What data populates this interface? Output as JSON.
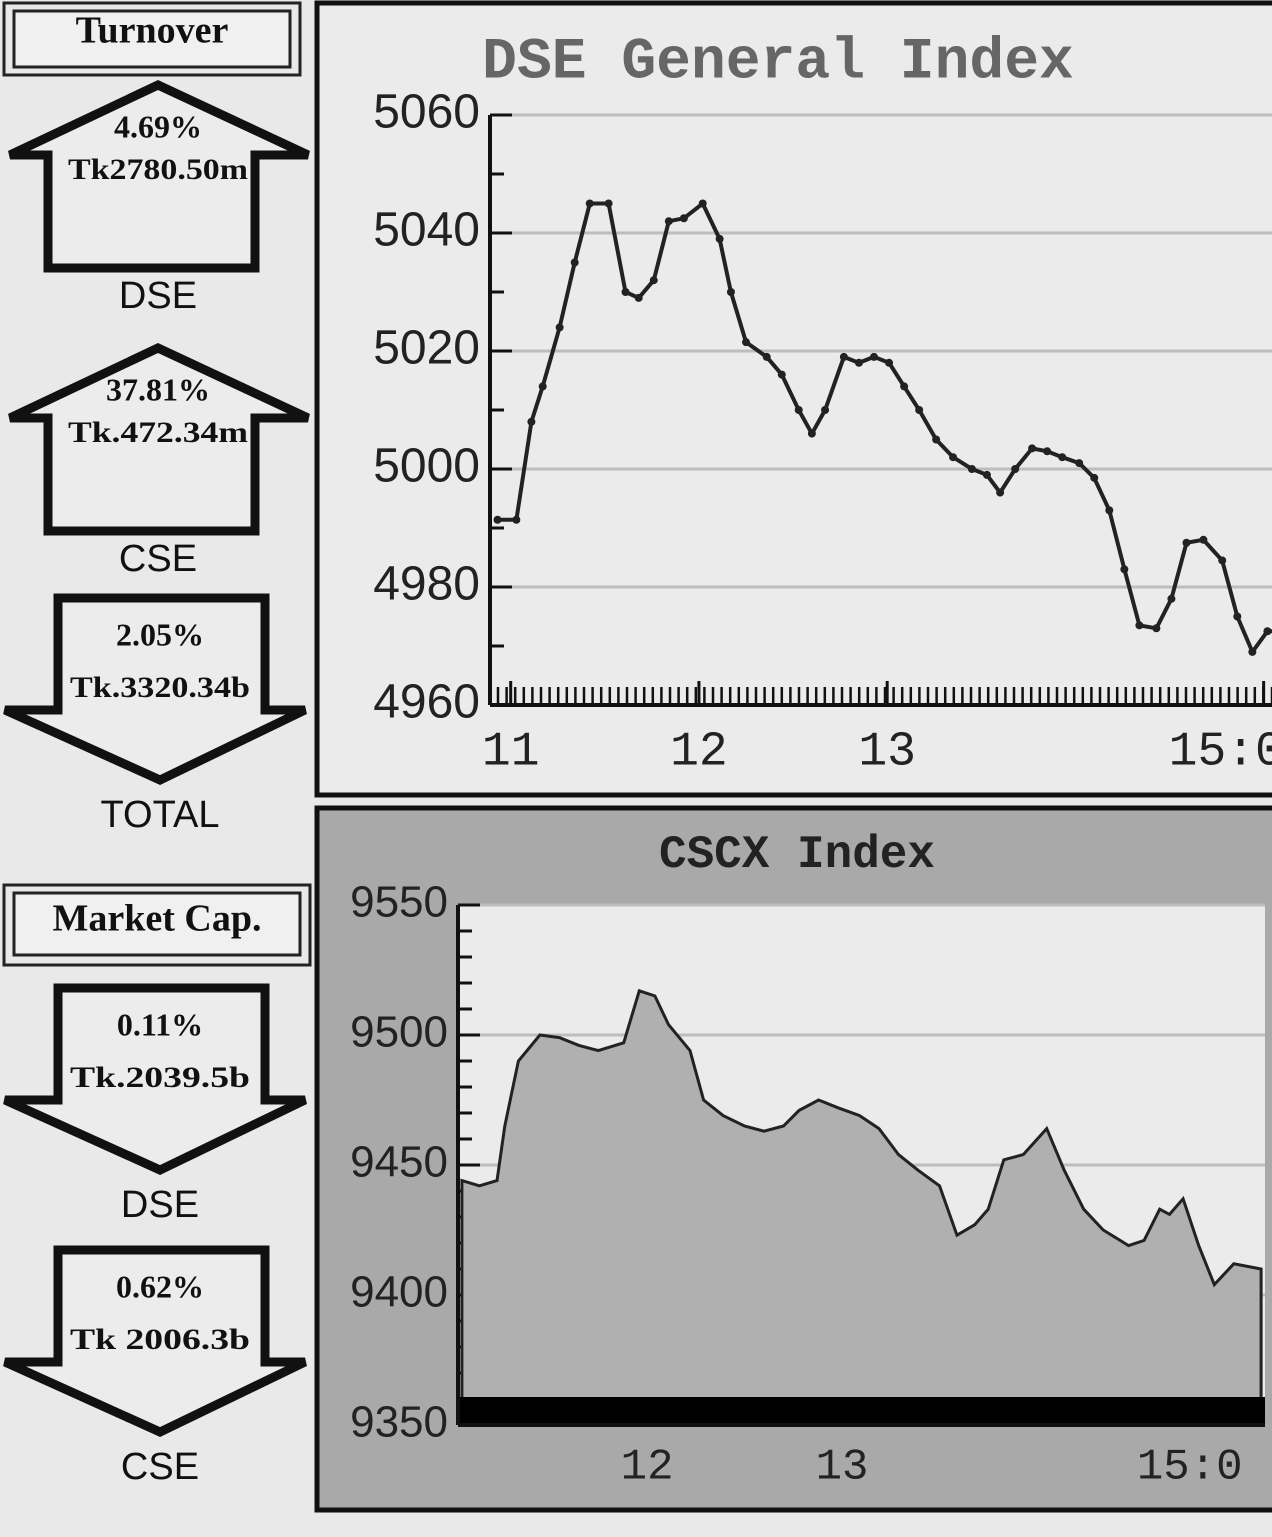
{
  "panel": {
    "turnover": {
      "title": "Turnover",
      "items": [
        {
          "pct": "4.69%",
          "amount": "Tk2780.50m",
          "label": "DSE",
          "direction": "up"
        },
        {
          "pct": "37.81%",
          "amount": "Tk.472.34m",
          "label": "CSE",
          "direction": "up"
        },
        {
          "pct": "2.05%",
          "amount": "Tk.3320.34b",
          "label": "TOTAL",
          "direction": "down"
        }
      ]
    },
    "market_cap": {
      "title": "Market Cap.",
      "items": [
        {
          "pct": "0.11%",
          "amount": "Tk.2039.5b",
          "label": "DSE",
          "direction": "down"
        },
        {
          "pct": "0.62%",
          "amount": "Tk 2006.3b",
          "label": "CSE",
          "direction": "down"
        }
      ]
    }
  },
  "chart_data": [
    {
      "type": "line",
      "title": "DSE General Index",
      "color": "#222222",
      "markers": true,
      "x": [
        10.93,
        11.03,
        11.11,
        11.17,
        11.26,
        11.34,
        11.42,
        11.52,
        11.61,
        11.68,
        11.76,
        11.84,
        11.92,
        12.02,
        12.11,
        12.17,
        12.25,
        12.36,
        12.44,
        12.53,
        12.6,
        12.67,
        12.77,
        12.85,
        12.93,
        13.01,
        13.09,
        13.17,
        13.26,
        13.35,
        13.45,
        13.53,
        13.6,
        13.68,
        13.77,
        13.85,
        13.93,
        14.02,
        14.1,
        14.18,
        14.26,
        14.34,
        14.43,
        14.51,
        14.59,
        14.68,
        14.78,
        14.86,
        14.94,
        15.02,
        15.1
      ],
      "values": [
        4991.4,
        4991.4,
        5008,
        5014,
        5024,
        5035,
        5045,
        5045,
        5030,
        5029,
        5032,
        5042,
        5042.5,
        5045,
        5039,
        5030,
        5021.5,
        5019,
        5016,
        5010,
        5006,
        5010,
        5019,
        5018,
        5019,
        5018,
        5014,
        5010,
        5005,
        5002,
        5000,
        4999,
        4996,
        5000,
        5003.5,
        5003,
        5002,
        5001,
        4998.5,
        4993,
        4983,
        4973.5,
        4973,
        4978,
        4987.5,
        4988,
        4984.5,
        4975,
        4969,
        4972.5,
        4972.5
      ],
      "xlim": [
        10.89,
        15.14
      ],
      "ylim": [
        4960,
        5060
      ],
      "xticks": [
        11,
        12,
        13,
        {
          "value": 15,
          "label": "15:0"
        }
      ],
      "yticks": [
        4960,
        4980,
        5000,
        5020,
        5040,
        5060
      ],
      "grid": true
    },
    {
      "type": "area",
      "title": "CSCX Index",
      "color": "#b0b0b0",
      "x": [
        11.05,
        11.14,
        11.23,
        11.27,
        11.34,
        11.45,
        11.55,
        11.65,
        11.75,
        11.88,
        11.96,
        12.04,
        12.11,
        12.22,
        12.29,
        12.39,
        12.5,
        12.6,
        12.7,
        12.78,
        12.88,
        12.98,
        13.09,
        13.19,
        13.29,
        13.39,
        13.5,
        13.59,
        13.68,
        13.75,
        13.83,
        13.93,
        14.05,
        14.14,
        14.24,
        14.34,
        14.47,
        14.55,
        14.63,
        14.68,
        14.75,
        14.83,
        14.91,
        15.01,
        15.15
      ],
      "values": [
        9444,
        9442,
        9444,
        9465,
        9490,
        9500,
        9499,
        9496,
        9494,
        9497,
        9517,
        9515,
        9504,
        9494,
        9475,
        9469,
        9465,
        9463,
        9465,
        9471,
        9475,
        9472,
        9469,
        9464,
        9454,
        9448,
        9442,
        9423,
        9427,
        9433,
        9452,
        9454,
        9464,
        9448,
        9433,
        9425,
        9419,
        9421,
        9433,
        9431,
        9437,
        9419,
        9404,
        9412,
        9410
      ],
      "xlim": [
        11.03,
        15.17
      ],
      "ylim": [
        9350,
        9550
      ],
      "xticks": [
        12,
        13,
        {
          "value": 15,
          "label": "15:0"
        }
      ],
      "yticks": [
        9350,
        9400,
        9450,
        9500,
        9550
      ],
      "grid": true
    }
  ]
}
